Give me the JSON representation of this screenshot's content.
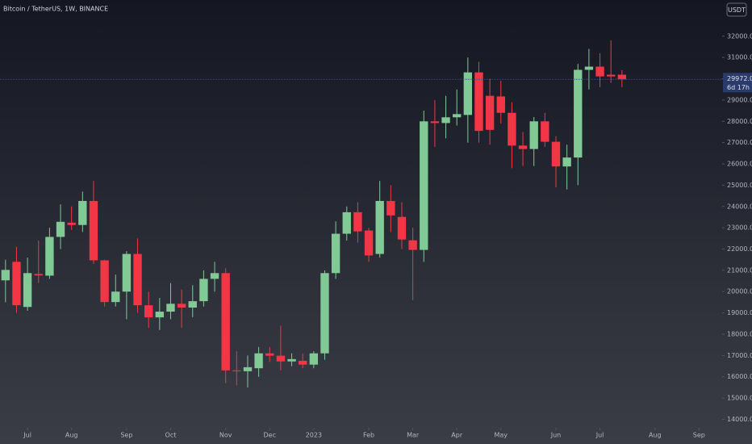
{
  "chart_data": {
    "type": "candlestick",
    "title": "Bitcoin / TetherUS, 1W, BINANCE",
    "currency": "USDT",
    "up_color": "#81c995",
    "down_color": "#f23645",
    "categories": [
      null,
      null,
      null,
      null,
      null,
      null,
      null,
      null,
      null,
      null,
      null,
      null,
      null,
      null,
      null,
      null,
      null,
      null,
      null,
      null,
      null,
      null,
      null,
      null,
      null,
      null,
      null,
      null,
      null,
      null,
      null,
      null,
      null,
      null,
      null,
      null,
      null,
      null,
      null,
      null,
      null,
      null,
      null,
      null,
      null,
      null,
      null,
      null,
      null,
      null,
      null,
      null,
      null,
      null,
      null,
      null,
      null
    ],
    "open": [
      20530,
      21400,
      19280,
      20830,
      20750,
      22570,
      23240,
      23130,
      24260,
      21470,
      19510,
      20000,
      21770,
      19360,
      18790,
      19060,
      19430,
      19250,
      19550,
      20600,
      20870,
      16300,
      16260,
      16400,
      17100,
      16990,
      16720,
      16750,
      16570,
      17100,
      20870,
      22720,
      23730,
      22870,
      21770,
      24260,
      23510,
      22410,
      21960,
      28000,
      27920,
      28190,
      28300,
      30300,
      29200,
      29170,
      28400,
      26860,
      26700,
      28000,
      27040,
      25880,
      26300,
      30420,
      30570,
      30190,
      30190
    ],
    "high": [
      21500,
      22100,
      21600,
      22400,
      23000,
      24100,
      24000,
      24700,
      25200,
      21500,
      20800,
      21900,
      22500,
      20000,
      19700,
      20400,
      20100,
      20300,
      21000,
      21400,
      21100,
      17200,
      17000,
      17400,
      17400,
      18400,
      17100,
      17100,
      17200,
      21000,
      23300,
      24000,
      24200,
      23000,
      25200,
      25000,
      24200,
      23000,
      28500,
      29000,
      29200,
      29500,
      31000,
      30800,
      30000,
      29900,
      28900,
      27500,
      28200,
      28400,
      27300,
      26900,
      30700,
      31400,
      31200,
      31800,
      30400
    ],
    "low": [
      19500,
      19000,
      19100,
      20400,
      20600,
      22000,
      22900,
      22800,
      21300,
      19300,
      19300,
      18700,
      19000,
      18300,
      18200,
      18700,
      18300,
      18800,
      19300,
      20000,
      15700,
      15600,
      15500,
      16000,
      16700,
      16300,
      16500,
      16400,
      16400,
      16800,
      20600,
      22400,
      22300,
      21400,
      21600,
      22800,
      22000,
      19600,
      21400,
      26800,
      27200,
      27800,
      27000,
      27000,
      26900,
      27900,
      25800,
      25900,
      25900,
      26800,
      24900,
      24800,
      25000,
      29500,
      29600,
      29800,
      29600
    ],
    "close": [
      21020,
      19360,
      20870,
      20760,
      22570,
      23280,
      23130,
      24260,
      21470,
      19510,
      20000,
      21770,
      19360,
      18790,
      19060,
      19430,
      19250,
      19550,
      20600,
      20870,
      16300,
      16260,
      16450,
      17100,
      16990,
      16720,
      16830,
      16570,
      17100,
      20870,
      22720,
      23730,
      22830,
      21700,
      24260,
      23580,
      22450,
      21960,
      28000,
      27920,
      28190,
      28340,
      30300,
      27550,
      27600,
      28400,
      26860,
      26700,
      28000,
      27040,
      25880,
      26300,
      30420,
      30570,
      30110,
      30110,
      29970
    ],
    "xlim": [
      -0.5,
      65.1
    ],
    "xticks": [
      {
        "value": 2,
        "label": "Jul"
      },
      {
        "value": 6,
        "label": "Aug"
      },
      {
        "value": 11,
        "label": "Sep"
      },
      {
        "value": 15,
        "label": "Oct"
      },
      {
        "value": 20,
        "label": "Nov"
      },
      {
        "value": 24,
        "label": "Dec"
      },
      {
        "value": 28,
        "label": "2023"
      },
      {
        "value": 33,
        "label": "Feb"
      },
      {
        "value": 37,
        "label": "Mar"
      },
      {
        "value": 41,
        "label": "Apr"
      },
      {
        "value": 45,
        "label": "May"
      },
      {
        "value": 50,
        "label": "Jun"
      },
      {
        "value": 54,
        "label": "Jul"
      },
      {
        "value": 59,
        "label": "Aug"
      },
      {
        "value": 63,
        "label": "Sep"
      }
    ],
    "ylim": [
      13600,
      33700
    ],
    "yticks": [
      {
        "value": 14000,
        "label": "14000.00"
      },
      {
        "value": 15000,
        "label": "15000.00"
      },
      {
        "value": 16000,
        "label": "16000.00"
      },
      {
        "value": 17000,
        "label": "17000.00"
      },
      {
        "value": 18000,
        "label": "18000.00"
      },
      {
        "value": 19000,
        "label": "19000.00"
      },
      {
        "value": 20000,
        "label": "20000.00"
      },
      {
        "value": 21000,
        "label": "21000.00"
      },
      {
        "value": 22000,
        "label": "22000.00"
      },
      {
        "value": 23000,
        "label": "23000.00"
      },
      {
        "value": 24000,
        "label": "24000.00"
      },
      {
        "value": 25000,
        "label": "25000.00"
      },
      {
        "value": 26000,
        "label": "26000.00"
      },
      {
        "value": 27000,
        "label": "27000.00"
      },
      {
        "value": 28000,
        "label": "28000.00"
      },
      {
        "value": 29000,
        "label": "29000.00"
      },
      {
        "value": 30000,
        "label": "30000.00"
      },
      {
        "value": 31000,
        "label": "31000.00"
      },
      {
        "value": 32000,
        "label": "32000.00"
      }
    ],
    "last_price": {
      "value": 29972,
      "label": "29972.00"
    },
    "countdown": "6d 17h"
  }
}
